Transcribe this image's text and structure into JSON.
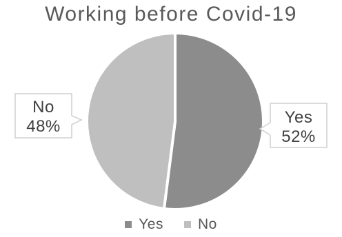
{
  "chart_data": {
    "type": "pie",
    "title": "Working before Covid-19",
    "categories": [
      "Yes",
      "No"
    ],
    "values": [
      52,
      48
    ],
    "colors": [
      "#8c8c8c",
      "#bfbfbf"
    ],
    "data_labels": [
      {
        "category": "Yes",
        "percent": "52%"
      },
      {
        "category": "No",
        "percent": "48%"
      }
    ],
    "legend_position": "bottom"
  }
}
